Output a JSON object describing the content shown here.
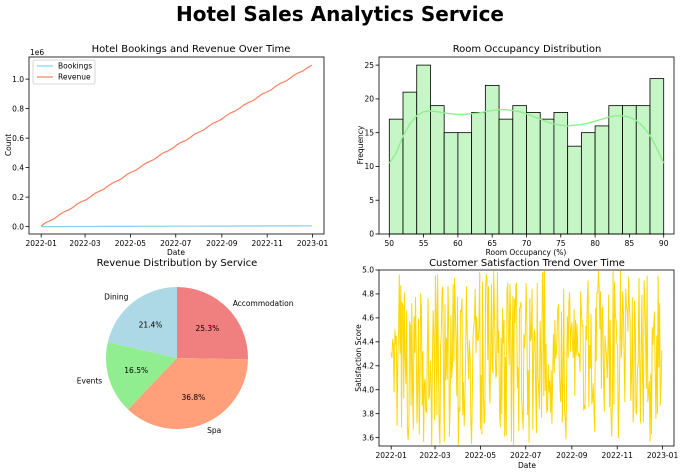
{
  "suptitle": "Hotel Sales Analytics Service",
  "colors": {
    "bookings": "#87ceeb",
    "revenue": "#fa8060",
    "hist_fill": "#c6f5c6",
    "kde": "#90ee90",
    "satisfaction": "#ffd700",
    "pie": [
      "#f08080",
      "#ffa07a",
      "#90ee90",
      "#add8e6"
    ]
  },
  "chart_data": [
    {
      "type": "line",
      "title": "Hotel Bookings and Revenue Over Time",
      "xlabel": "Date",
      "ylabel": "Count",
      "y_offset_text": "1e6",
      "x_ticks": [
        "2022-01",
        "2022-03",
        "2022-05",
        "2022-07",
        "2022-09",
        "2022-11",
        "2023-01"
      ],
      "y_ticks": [
        "0.0",
        "0.2",
        "0.4",
        "0.6",
        "0.8",
        "1.0"
      ],
      "ylim": [
        -0.05,
        1.15
      ],
      "legend": "upper-left",
      "series": [
        {
          "name": "Bookings",
          "x_start": "2022-01-01",
          "x_end": "2022-12-31",
          "values_start": 0.0,
          "values_end": 0.0055
        },
        {
          "name": "Revenue",
          "x_start": "2022-01-01",
          "x_end": "2022-12-31",
          "values_start": 0.005,
          "values_end": 1.095
        }
      ]
    },
    {
      "type": "bar",
      "title": "Room Occupancy Distribution",
      "xlabel": "Room Occupancy (%)",
      "ylabel": "Frequency",
      "x_ticks": [
        "50",
        "55",
        "60",
        "65",
        "70",
        "75",
        "80",
        "85",
        "90"
      ],
      "y_ticks": [
        "0",
        "5",
        "10",
        "15",
        "20",
        "25"
      ],
      "xlim": [
        48.5,
        91.5
      ],
      "ylim": [
        0,
        26.2
      ],
      "bin_start": 50,
      "bin_width": 2,
      "values": [
        17,
        21,
        25,
        19,
        15,
        15,
        18,
        22,
        17,
        19,
        18,
        17,
        18,
        13,
        15,
        16,
        19,
        19,
        19,
        23
      ],
      "kde_x": [
        50,
        51,
        52,
        53,
        54,
        55,
        56,
        57,
        58,
        59,
        60,
        61,
        62,
        63,
        64,
        65,
        66,
        67,
        68,
        69,
        70,
        71,
        72,
        73,
        74,
        75,
        76,
        77,
        78,
        79,
        80,
        81,
        82,
        83,
        84,
        85,
        86,
        87,
        88,
        89,
        90
      ],
      "kde_y": [
        10.5,
        12.0,
        14.5,
        16.3,
        17.5,
        18.1,
        18.2,
        18.1,
        17.9,
        17.8,
        17.7,
        17.7,
        17.8,
        17.9,
        18.1,
        18.3,
        18.4,
        18.4,
        18.3,
        18.1,
        17.8,
        17.4,
        17.0,
        16.6,
        16.3,
        16.1,
        16.0,
        16.1,
        16.2,
        16.4,
        16.7,
        17.0,
        17.3,
        17.5,
        17.5,
        17.3,
        16.8,
        15.9,
        14.6,
        12.7,
        10.5
      ]
    },
    {
      "type": "pie",
      "title": "Revenue Distribution by Service",
      "slices": [
        {
          "label": "Accommodation",
          "value": 25.3,
          "pct": "25.3%"
        },
        {
          "label": "Spa",
          "value": 36.8,
          "pct": "36.8%"
        },
        {
          "label": "Events",
          "value": 16.5,
          "pct": "16.5%"
        },
        {
          "label": "Dining",
          "value": 21.4,
          "pct": "21.4%"
        }
      ]
    },
    {
      "type": "line",
      "title": "Customer Satisfaction Trend Over Time",
      "xlabel": "Date",
      "ylabel": "Satisfaction Score",
      "x_ticks": [
        "2022-01",
        "2022-03",
        "2022-05",
        "2022-07",
        "2022-09",
        "2022-11",
        "2023-01"
      ],
      "y_ticks": [
        "3.6",
        "3.8",
        "4.0",
        "4.2",
        "4.4",
        "4.6",
        "4.8",
        "5.0"
      ],
      "ylim": [
        3.53,
        5.0
      ],
      "series": [
        {
          "name": "Satisfaction Score",
          "x_start": "2022-01-01",
          "x_end": "2022-12-31",
          "values": [
            4.31,
            4.27,
            4.42,
            4.38,
            3.98,
            4.5,
            4.38,
            4.45,
            3.7,
            4.24,
            4.51,
            4.96,
            4.3,
            4.87,
            3.69,
            4.73,
            4.7,
            3.93,
            4.81,
            4.25,
            4.05,
            4.66,
            3.67,
            3.58,
            3.71,
            4.57,
            4.53,
            3.87,
            4.72,
            3.98,
            3.67,
            4.61,
            4.31,
            4.77,
            4.3,
            3.72,
            4.04,
            4.59,
            3.63,
            3.96,
            4.8,
            4.68,
            3.87,
            4.32,
            3.57,
            4.06,
            4.09,
            3.82,
            3.81,
            4.35,
            4.76,
            3.92,
            3.95,
            4.24,
            4.08,
            3.54,
            4.31,
            4.66,
            4.41,
            3.75,
            4.95,
            4.63,
            3.79,
            4.96,
            4.25,
            3.69,
            3.55,
            4.34,
            4.48,
            4.83,
            4.86,
            4.13,
            3.57,
            4.71,
            4.08,
            4.43,
            4.09,
            4.86,
            4.56,
            3.61,
            3.93,
            4.62,
            4.1,
            4.2,
            4.88,
            4.24,
            4.93,
            4.68,
            4.36,
            3.95,
            4.77,
            3.54,
            3.85,
            3.82,
            4.66,
            4.65,
            4.76,
            3.79,
            4.06,
            3.7,
            3.94,
            4.32,
            4.86,
            4.51,
            4.28,
            4.09,
            4.41,
            4.26,
            3.74,
            3.55,
            3.96,
            4.44,
            4.52,
            4.6,
            4.84,
            4.31,
            4.61,
            4.42,
            4.41,
            4.51,
            4.98,
            3.67,
            4.12,
            3.63,
            4.9,
            3.97,
            3.72,
            3.73,
            4.85,
            4.96,
            4.93,
            4.25,
            4.86,
            4.06,
            3.89,
            4.32,
            4.88,
            4.2,
            4.14,
            4.99,
            4.66,
            4.32,
            4.1,
            4.13,
            4.98,
            4.31,
            4.49,
            3.81,
            3.69,
            4.43,
            3.8,
            4.68,
            4.39,
            4.58,
            3.61,
            4.27,
            3.62,
            4.82,
            4.89,
            4.48,
            4.21,
            4.88,
            4.64,
            3.57,
            4.36,
            4.78,
            3.54,
            4.76,
            4.56,
            4.87,
            4.89,
            4.02,
            4.19,
            3.66,
            4.68,
            4.69,
            4.73,
            3.91,
            3.79,
            3.67,
            4.46,
            4.35,
            4.53,
            4.89,
            4.54,
            3.79,
            4.16,
            3.56,
            4.76,
            4.41,
            4.44,
            4.84,
            3.67,
            4.19,
            4.5,
            4.46,
            3.98,
            3.64,
            4.89,
            4.11,
            4.0,
            3.84,
            4.57,
            4.31,
            3.77,
            4.97,
            4.98,
            3.95,
            4.99,
            3.99,
            4.38,
            3.81,
            3.83,
            4.21,
            3.98,
            4.07,
            3.81,
            4.16,
            3.72,
            4.13,
            4.46,
            4.14,
            4.58,
            4.26,
            4.31,
            4.48,
            4.67,
            4.71,
            4.17,
            3.99,
            3.9,
            4.65,
            3.73,
            4.03,
            4.84,
            3.86,
            3.75,
            3.59,
            4.19,
            4.61,
            4.27,
            4.73,
            4.81,
            4.32,
            4.49,
            4.56,
            4.36,
            4.27,
            4.67,
            3.95,
            4.58,
            4.29,
            4.55,
            4.32,
            4.28,
            4.3,
            4.15,
            4.82,
            4.66,
            4.53,
            4.54,
            3.83,
            3.87,
            3.84,
            4.53,
            4.42,
            4.75,
            4.91,
            3.86,
            4.37,
            4.18,
            4.63,
            3.88,
            3.92,
            4.05,
            3.83,
            3.65,
            4.68,
            4.24,
            4.81,
            4.81,
            4.99,
            4.87,
            4.51,
            4.82,
            4.01,
            4.68,
            4.69,
            4.07,
            3.82,
            4.45,
            4.36,
            4.27,
            4.1,
            4.37,
            4.79,
            3.86,
            4.58,
            3.82,
            3.61,
            3.9,
            4.99,
            3.88,
            4.9,
            4.62,
            4.58,
            4.4,
            4.35,
            3.6,
            3.86,
            4.3,
            4.99,
            4.27,
            4.38,
            4.82,
            4.64,
            4.22,
            3.9,
            4.84,
            4.7,
            4.66,
            4.49,
            4.94,
            4.69,
            4.57,
            3.91,
            4.13,
            4.77,
            3.73,
            3.84,
            4.74,
            4.51,
            3.81,
            3.8,
            4.16,
            4.22,
            4.93,
            4.28,
            3.72,
            4.34,
            4.79,
            4.08,
            3.73,
            4.91,
            4.73,
            4.46,
            4.01,
            4.95,
            3.9,
            3.97,
            4.07,
            3.57,
            4.13,
            3.63,
            4.52,
            4.38,
            4.53,
            4.65,
            4.15,
            3.76,
            4.45,
            3.8,
            4.95,
            4.19,
            4.72,
            3.87,
            4.06,
            4.33
          ]
        }
      ]
    }
  ]
}
